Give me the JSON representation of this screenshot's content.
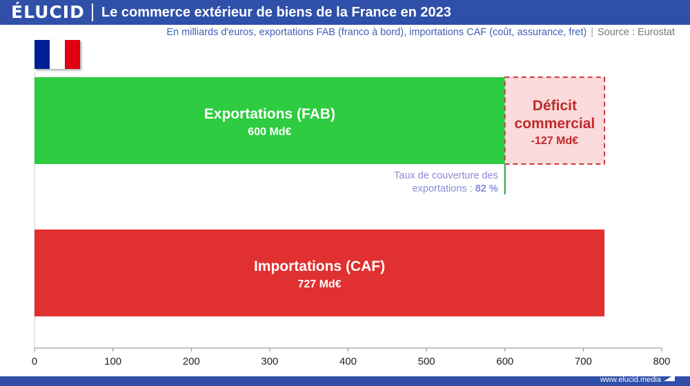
{
  "header": {
    "logo": "ÉLUCID",
    "title": "Le commerce extérieur de biens de la France en 2023"
  },
  "subtitle": "En milliards d'euros, exportations FAB (franco à bord), importations CAF (coût, assurance, fret)",
  "source_separator": "|",
  "source": "Source : Eurostat",
  "footer": {
    "site": "www.elucid.media"
  },
  "flag_icon": "france-flag-icon",
  "colors": {
    "header_bg": "#2f4fa8",
    "exports_bar": "#2ecc40",
    "imports_bar": "#e03030",
    "deficit_fill": "#fadada",
    "deficit_border": "#d03a3a",
    "deficit_text": "#c0282a",
    "coverage_text": "#8a8ad8",
    "coverage_line": "#2e9e3a"
  },
  "chart_data": {
    "type": "bar",
    "orientation": "horizontal",
    "xlim": [
      0,
      800
    ],
    "x_ticks": [
      0,
      100,
      200,
      300,
      400,
      500,
      600,
      700,
      800
    ],
    "grid": false,
    "bars": [
      {
        "name": "Exportations (FAB)",
        "value": 600,
        "value_label": "600 Md€"
      },
      {
        "name": "Importations (CAF)",
        "value": 727,
        "value_label": "727 Md€"
      }
    ],
    "deficit": {
      "label_line1": "Déficit",
      "label_line2": "commercial",
      "value_label": "-127 Md€",
      "from": 600,
      "to": 727
    },
    "coverage": {
      "line1": "Taux de couverture des",
      "line2_prefix": "exportations : ",
      "line2_value": "82 %",
      "at": 600
    }
  }
}
